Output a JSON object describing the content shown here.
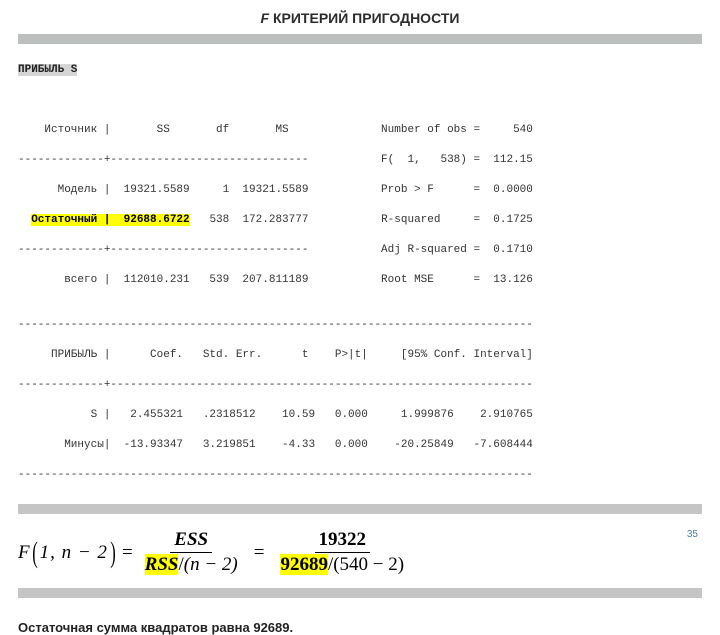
{
  "title_prefix": "F",
  "title_rest": " КРИТЕРИЙ ПРИГОДНОСТИ",
  "terminal": {
    "header": "ПРИБЫЛЬ S",
    "rows": [
      "    Источник |       SS       df       MS              Number of obs =     540",
      "-------------+------------------------------           F(  1,   538) =  112.15",
      "      Модель |  19321.5589     1  19321.5589           Prob > F      =  0.0000",
      "-------------+------------------------------           Adj R-squared =  0.1710",
      "       всего |  112010.231   539  207.811189           Root MSE      =  13.126",
      "",
      "------------------------------------------------------------------------------",
      "     ПРИБЫЛЬ |      Coef.   Std. Err.      t    P>|t|     [95% Conf. Interval]",
      "-------------+----------------------------------------------------------------",
      "           S |   2.455321   .2318512    10.59   0.000     1.999876    2.910765",
      "       Минусы|  -13.93347   3.219851    -4.33   0.000    -20.25849   -7.608444",
      "------------------------------------------------------------------------------"
    ],
    "residual_row": {
      "pre": "  ",
      "label": "Остаточный |  92688.6722",
      "post": "   538  172.283777           R-squared     =  0.1725"
    }
  },
  "formula": {
    "F": "F",
    "args": "1, n − 2",
    "eq": "=",
    "num1": "ESS",
    "den1a": "RSS",
    "den1b": "/",
    "den1c": "(n − 2)",
    "num2": "19322",
    "den2a": "92689",
    "den2c": "(540 − 2)"
  },
  "footnote": "Остаточная сумма квадратов равна 92689.",
  "page": "35"
}
